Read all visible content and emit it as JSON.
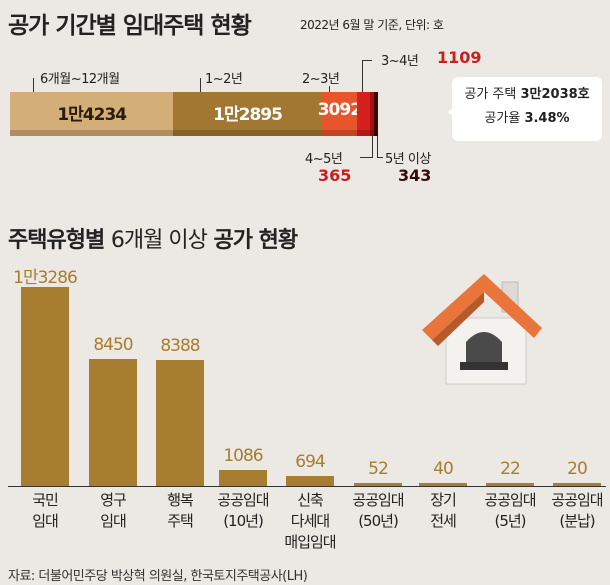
{
  "top_chart": {
    "title": "공가 기간별 임대주택 현황",
    "subtitle": "2022년 6월 말 기준, 단위: 호",
    "type": "stacked-bar",
    "segments": [
      {
        "label": "6개월~12개월",
        "value": 14234,
        "display": "1만4234",
        "color": "#d3ae78"
      },
      {
        "label": "1~2년",
        "value": 12895,
        "display": "1만2895",
        "color": "#a17731"
      },
      {
        "label": "2~3년",
        "value": 3092,
        "display": "3092",
        "color": "#e8552b"
      },
      {
        "label": "3~4년",
        "value": 1109,
        "display": "1109",
        "color": "#d61f1f"
      },
      {
        "label": "4~5년",
        "value": 365,
        "display": "365",
        "color": "#a31212"
      },
      {
        "label": "5년 이상",
        "value": 343,
        "display": "343",
        "color": "#3a0a0a"
      }
    ],
    "callout_line1_label": "공가 주택",
    "callout_line1_value": "3만2038호",
    "callout_line2_label": "공가율",
    "callout_line2_value": "3.48%"
  },
  "chart_data": {
    "type": "bar",
    "title_plain": "주택유형별",
    "title_mid": "6개월 이상",
    "title_bold": "공가 현황",
    "categories": [
      "국민\n임대",
      "영구\n임대",
      "행복\n주택",
      "공공임대\n(10년)",
      "신축\n다세대\n매입임대",
      "공공임대\n(50년)",
      "장기\n전세",
      "공공임대\n(5년)",
      "공공임대\n(분납)"
    ],
    "values": [
      13286,
      8450,
      8388,
      1086,
      694,
      52,
      40,
      22,
      20
    ],
    "labels": [
      "1만3286",
      "8450",
      "8388",
      "1086",
      "694",
      "52",
      "40",
      "22",
      "20"
    ],
    "color": "#a77d2f",
    "ylim": [
      0,
      13286
    ]
  },
  "source": "자료: 더불어민주당 박상혁 의원실, 한국토지주택공사(LH)"
}
